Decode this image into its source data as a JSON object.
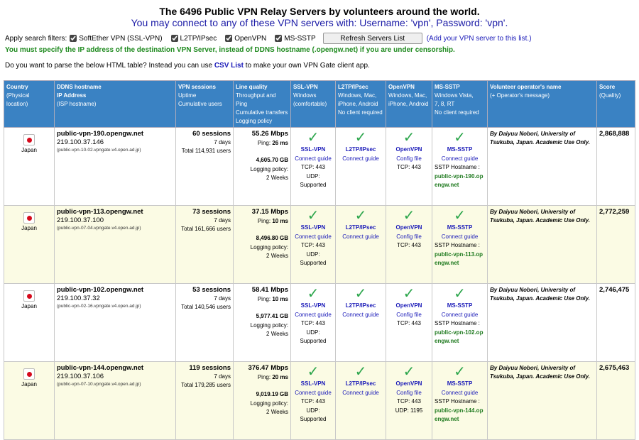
{
  "header": {
    "title": "The 6496 Public VPN Relay Servers by volunteers around the world.",
    "subtitle": "You may connect to any of these VPN servers with: Username: 'vpn', Password: 'vpn'."
  },
  "filters": {
    "label": "Apply search filters:",
    "options": [
      {
        "label": "SoftEther VPN (SSL-VPN)",
        "checked": true
      },
      {
        "label": "L2TP/IPsec",
        "checked": true
      },
      {
        "label": "OpenVPN",
        "checked": true
      },
      {
        "label": "MS-SSTP",
        "checked": true
      }
    ],
    "refresh_label": "Refresh Servers List",
    "add_link": "(Add your VPN server to this list.)"
  },
  "warning": "You must specify the IP address of the destination VPN Server, instead of DDNS hostname (.opengw.net) if you are under censorship.",
  "csv": {
    "before": "Do you want to parse the below HTML table? Instead you can use ",
    "link": "CSV List",
    "after": " to make your own VPN Gate client app."
  },
  "columns": {
    "country": [
      "Country",
      "(Physical location)"
    ],
    "ddns": [
      "DDNS hostname",
      "IP Address",
      "(ISP hostname)"
    ],
    "sessions": [
      "VPN sessions",
      "Uptime",
      "Cumulative users"
    ],
    "quality": [
      "Line quality",
      "Throughput and Ping",
      "Cumulative transfers",
      "Logging policy"
    ],
    "sslvpn": [
      "SSL-VPN",
      "Windows",
      "(comfortable)"
    ],
    "l2tp": [
      "L2TP/IPsec",
      "Windows, Mac,",
      "iPhone, Android",
      "No client required"
    ],
    "openvpn": [
      "OpenVPN",
      "Windows, Mac,",
      "iPhone, Android"
    ],
    "sstp": [
      "MS-SSTP",
      "Windows Vista,",
      "7, 8, RT",
      "No client required"
    ],
    "operator": [
      "Volunteer operator's name",
      "(+ Operator's message)"
    ],
    "score": [
      "Score",
      "(Quality)"
    ]
  },
  "labels": {
    "ping": "Ping:",
    "logging": "Logging policy:",
    "ssl": "SSL-VPN",
    "connect_guide": "Connect guide",
    "l2tp": "L2TP/IPsec",
    "openvpn": "OpenVPN",
    "config_file": "Config file",
    "sstp": "MS-SSTP",
    "sstp_hostname": "SSTP Hostname :",
    "check": "✓"
  },
  "rows": [
    {
      "country": "Japan",
      "host": "public-vpn-190.opengw.net",
      "ip": "219.100.37.146",
      "isp": "(public-vpn-10-02.vpngate.v4.open.ad.jp)",
      "sessions": "60 sessions",
      "uptime": "7 days",
      "users": "Total 114,931 users",
      "speed": "55.26 Mbps",
      "ping": "26 ms",
      "transfer": "4,605.70 GB",
      "logweeks": "2 Weeks",
      "ssl_tcp": "TCP: 443",
      "ssl_udp": "UDP: Supported",
      "ovpn_tcp": "TCP: 443",
      "ovpn_udp": "",
      "sstp_host1": "public-vpn-190.op",
      "sstp_host2": "engw.net",
      "operator": "By Daiyuu Nobori, University of Tsukuba, Japan. Academic Use Only.",
      "score": "2,868,888"
    },
    {
      "country": "Japan",
      "host": "public-vpn-113.opengw.net",
      "ip": "219.100.37.100",
      "isp": "(public-vpn-07-04.vpngate.v4.open.ad.jp)",
      "sessions": "73 sessions",
      "uptime": "7 days",
      "users": "Total 161,666 users",
      "speed": "37.15 Mbps",
      "ping": "10 ms",
      "transfer": "8,496.80 GB",
      "logweeks": "2 Weeks",
      "ssl_tcp": "TCP: 443",
      "ssl_udp": "UDP: Supported",
      "ovpn_tcp": "TCP: 443",
      "ovpn_udp": "",
      "sstp_host1": "public-vpn-113.op",
      "sstp_host2": "engw.net",
      "operator": "By Daiyuu Nobori, University of Tsukuba, Japan. Academic Use Only.",
      "score": "2,772,259"
    },
    {
      "country": "Japan",
      "host": "public-vpn-102.opengw.net",
      "ip": "219.100.37.32",
      "isp": "(public-vpn-02-16.vpngate.v4.open.ad.jp)",
      "sessions": "53 sessions",
      "uptime": "7 days",
      "users": "Total 140,546 users",
      "speed": "58.41 Mbps",
      "ping": "10 ms",
      "transfer": "5,977.41 GB",
      "logweeks": "2 Weeks",
      "ssl_tcp": "TCP: 443",
      "ssl_udp": "UDP: Supported",
      "ovpn_tcp": "TCP: 443",
      "ovpn_udp": "",
      "sstp_host1": "public-vpn-102.op",
      "sstp_host2": "engw.net",
      "operator": "By Daiyuu Nobori, University of Tsukuba, Japan. Academic Use Only.",
      "score": "2,746,475"
    },
    {
      "country": "Japan",
      "host": "public-vpn-144.opengw.net",
      "ip": "219.100.37.106",
      "isp": "(public-vpn-07-10.vpngate.v4.open.ad.jp)",
      "sessions": "119 sessions",
      "uptime": "7 days",
      "users": "Total 179,285 users",
      "speed": "376.47 Mbps",
      "ping": "20 ms",
      "transfer": "9,019.19 GB",
      "logweeks": "2 Weeks",
      "ssl_tcp": "TCP: 443",
      "ssl_udp": "UDP: Supported",
      "ovpn_tcp": "TCP: 443",
      "ovpn_udp": "UDP: 1195",
      "sstp_host1": "public-vpn-144.op",
      "sstp_host2": "engw.net",
      "operator": "By Daiyuu Nobori, University of Tsukuba, Japan. Academic Use Only.",
      "score": "2,675,463"
    }
  ]
}
